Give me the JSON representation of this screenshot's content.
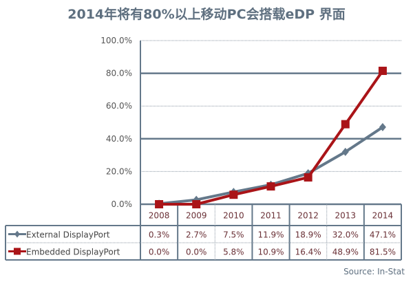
{
  "chart_data": {
    "type": "line",
    "title": "2014年将有80%以上移动PC会搭载eDP 界面",
    "categories": [
      "2008",
      "2009",
      "2010",
      "2011",
      "2012",
      "2013",
      "2014"
    ],
    "series": [
      {
        "name": "External DisplayPort",
        "values": [
          0.3,
          2.7,
          7.5,
          11.9,
          18.9,
          32.0,
          47.1
        ],
        "labels": [
          "0.3%",
          "2.7%",
          "7.5%",
          "11.9%",
          "18.9%",
          "32.0%",
          "47.1%"
        ],
        "color": "#64788a",
        "marker": "diamond"
      },
      {
        "name": "Embedded DisplayPort",
        "values": [
          0.0,
          0.0,
          5.8,
          10.9,
          16.4,
          48.9,
          81.5
        ],
        "labels": [
          "0.0%",
          "0.0%",
          "5.8%",
          "10.9%",
          "16.4%",
          "48.9%",
          "81.5%"
        ],
        "color": "#aa1418",
        "marker": "square"
      }
    ],
    "ylim": [
      0,
      100
    ],
    "yticks": [
      0,
      20,
      40,
      60,
      80,
      100
    ],
    "ytick_labels": [
      "0.0%",
      "20.0%",
      "40.0%",
      "60.0%",
      "80.0%",
      "100.0%"
    ],
    "grid": true,
    "legend": "data-table",
    "source": "Source: In-Stat"
  }
}
